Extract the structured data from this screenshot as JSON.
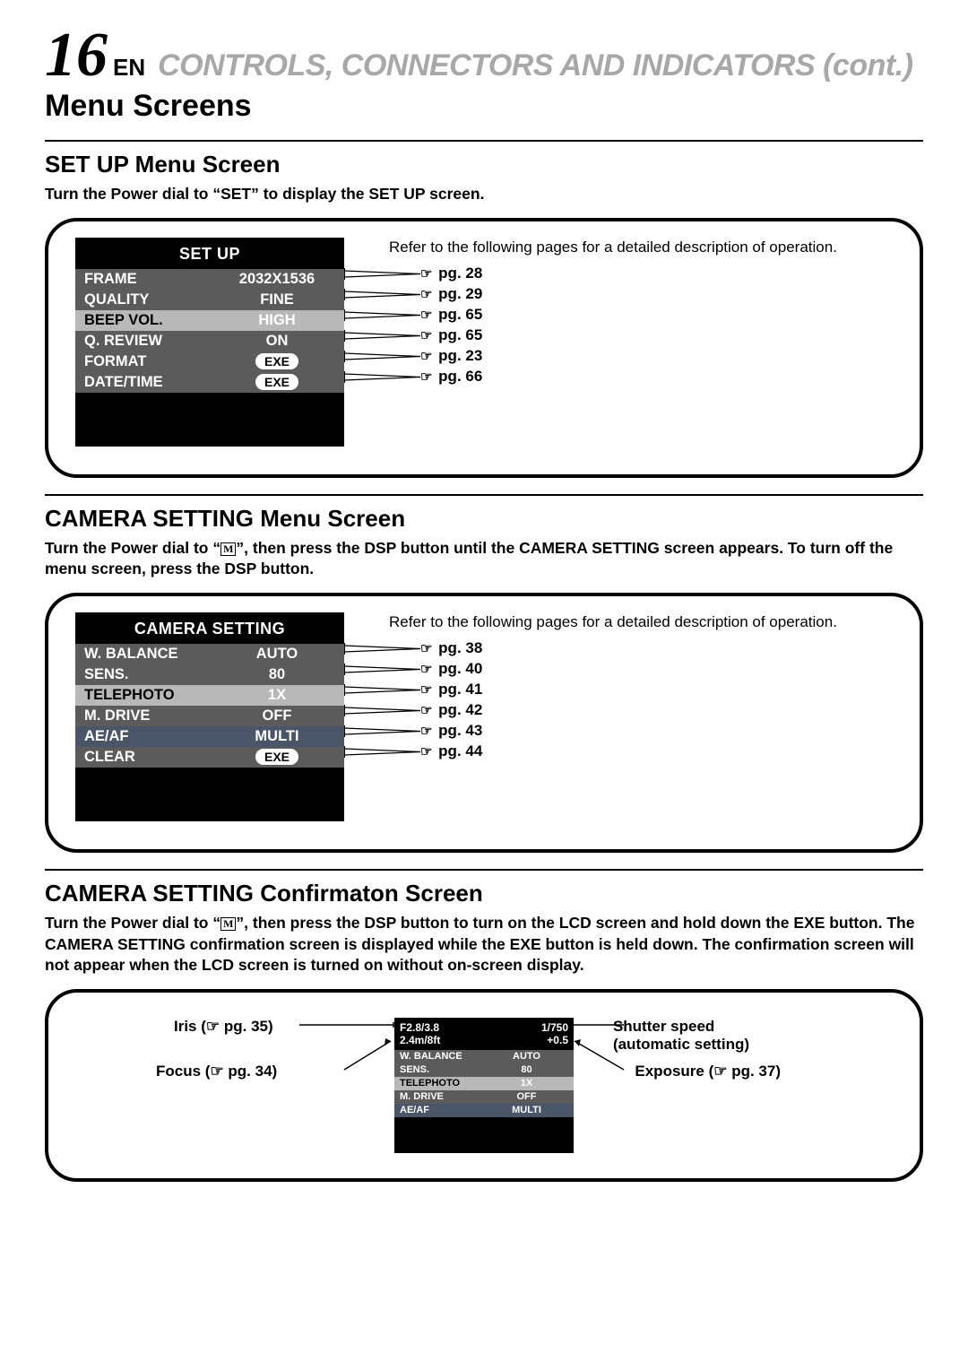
{
  "header": {
    "page_number": "16",
    "lang_tag": "EN",
    "title": "CONTROLS, CONNECTORS AND INDICATORS (cont.)"
  },
  "main_title": "Menu Screens",
  "colors": {
    "text": "#000000",
    "header_grey": "#A8A8A8",
    "osd_bg": "#000000",
    "osd_text": "#FFFFFF",
    "row_dark": "#5B5B5B",
    "row_highlight_grey": "#B8B8B8",
    "row_highlight_blue": "#4A5568"
  },
  "setup": {
    "title": "SET UP Menu Screen",
    "desc": "Turn the Power dial to “SET” to display the SET UP screen.",
    "osd_title": "SET UP",
    "intro": "Refer to the following pages for a detailed description of operation.",
    "rows": [
      {
        "label": "FRAME",
        "value": "2032X1536",
        "value_style": "text",
        "row_bg": "dark",
        "label_color": "#FFFFFF",
        "value_color": "#FFFFFF",
        "ref": "pg. 28"
      },
      {
        "label": "QUALITY",
        "value": "FINE",
        "value_style": "text",
        "row_bg": "dark",
        "label_color": "#FFFFFF",
        "value_color": "#FFFFFF",
        "ref": "pg. 29"
      },
      {
        "label": "BEEP VOL.",
        "value": "HIGH",
        "value_style": "text",
        "row_bg": "highlight_grey",
        "label_color": "#000000",
        "value_color": "#FFFFFF",
        "ref": "pg. 65"
      },
      {
        "label": "Q. REVIEW",
        "value": "ON",
        "value_style": "text",
        "row_bg": "dark",
        "label_color": "#FFFFFF",
        "value_color": "#FFFFFF",
        "ref": "pg. 65"
      },
      {
        "label": "FORMAT",
        "value": "EXE",
        "value_style": "pill",
        "row_bg": "dark",
        "label_color": "#FFFFFF",
        "value_color": "#000000",
        "ref": "pg. 23"
      },
      {
        "label": "DATE/TIME",
        "value": "EXE",
        "value_style": "pill",
        "row_bg": "dark",
        "label_color": "#FFFFFF",
        "value_color": "#000000",
        "ref": "pg. 66"
      }
    ]
  },
  "camera": {
    "title": "CAMERA SETTING Menu Screen",
    "desc_pre": "Turn the Power dial to “",
    "desc_post": "”, then press the DSP button until the CAMERA SETTING screen appears. To turn off the menu screen, press the DSP button.",
    "m_glyph": "M",
    "osd_title": "CAMERA SETTING",
    "intro": "Refer to the following pages for a detailed description of operation.",
    "rows": [
      {
        "label": "W. BALANCE",
        "value": "AUTO",
        "value_style": "text",
        "row_bg": "dark",
        "label_color": "#FFFFFF",
        "value_color": "#FFFFFF",
        "ref": "pg. 38"
      },
      {
        "label": "SENS.",
        "value": "80",
        "value_style": "text",
        "row_bg": "dark",
        "label_color": "#FFFFFF",
        "value_color": "#FFFFFF",
        "ref": "pg. 40"
      },
      {
        "label": "TELEPHOTO",
        "value": "1X",
        "value_style": "text",
        "row_bg": "highlight_grey",
        "label_color": "#000000",
        "value_color": "#FFFFFF",
        "ref": "pg. 41"
      },
      {
        "label": "M. DRIVE",
        "value": "OFF",
        "value_style": "text",
        "row_bg": "dark",
        "label_color": "#FFFFFF",
        "value_color": "#FFFFFF",
        "ref": "pg. 42"
      },
      {
        "label": "AE/AF",
        "value": "MULTI",
        "value_style": "text",
        "row_bg": "highlight_blue",
        "label_color": "#FFFFFF",
        "value_color": "#FFFFFF",
        "ref": "pg. 43"
      },
      {
        "label": "CLEAR",
        "value": "EXE",
        "value_style": "pill",
        "row_bg": "dark",
        "label_color": "#FFFFFF",
        "value_color": "#000000",
        "ref": "pg. 44"
      }
    ]
  },
  "confirm": {
    "title": "CAMERA SETTING Confirmaton Screen",
    "desc_pre": "Turn the Power dial to “",
    "desc_post": "”, then press the DSP button to turn on the LCD screen and hold down the EXE button. The CAMERA SETTING confirmation screen is displayed while the EXE button is held down. The confirmation screen will not appear when the LCD screen is turned on without on-screen display.",
    "m_glyph": "M",
    "top": {
      "iris": "F2.8/3.8",
      "shutter": "1/750",
      "focus": "2.4m/8ft",
      "exposure": "+0.5"
    },
    "rows": [
      {
        "label": "W. BALANCE",
        "value": "AUTO",
        "row_bg": "dark"
      },
      {
        "label": "SENS.",
        "value": "80",
        "row_bg": "dark"
      },
      {
        "label": "TELEPHOTO",
        "value": "1X",
        "row_bg": "highlight_grey"
      },
      {
        "label": "M. DRIVE",
        "value": "OFF",
        "row_bg": "dark"
      },
      {
        "label": "AE/AF",
        "value": "MULTI",
        "row_bg": "highlight_blue"
      }
    ],
    "callouts": {
      "iris": "Iris (☞ pg. 35)",
      "focus": "Focus (☞ pg. 34)",
      "shutter_l1": "Shutter speed",
      "shutter_l2": "(automatic setting)",
      "exposure": "Exposure (☞ pg. 37)"
    }
  }
}
